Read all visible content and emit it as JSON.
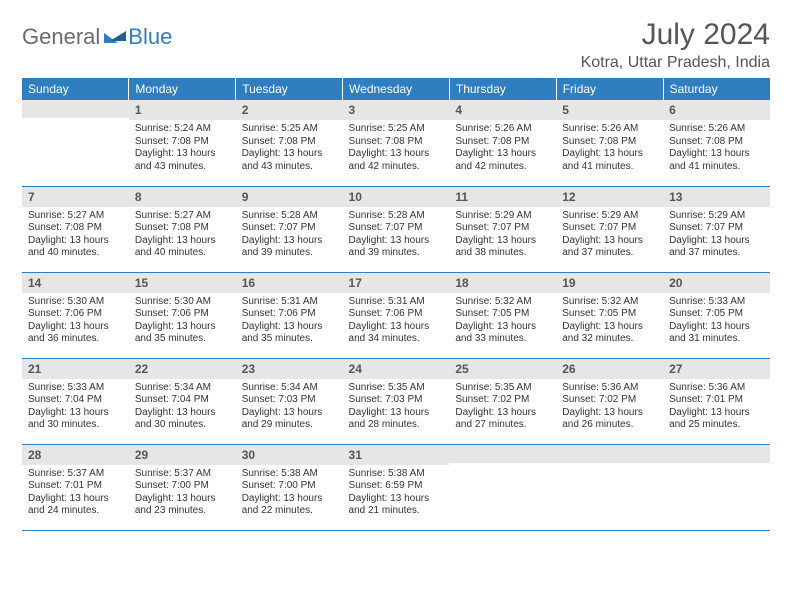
{
  "brand": {
    "part1": "General",
    "part2": "Blue"
  },
  "title": "July 2024",
  "location": "Kotra, Uttar Pradesh, India",
  "colors": {
    "accent": "#2f7ec0",
    "header_text": "#ffffff",
    "daynum_bg": "#e6e6e6",
    "text": "#333333",
    "muted": "#555555"
  },
  "columns": [
    "Sunday",
    "Monday",
    "Tuesday",
    "Wednesday",
    "Thursday",
    "Friday",
    "Saturday"
  ],
  "weeks": [
    [
      {
        "day": "",
        "sunrise": "",
        "sunset": "",
        "daylight": ""
      },
      {
        "day": "1",
        "sunrise": "Sunrise: 5:24 AM",
        "sunset": "Sunset: 7:08 PM",
        "daylight": "Daylight: 13 hours and 43 minutes."
      },
      {
        "day": "2",
        "sunrise": "Sunrise: 5:25 AM",
        "sunset": "Sunset: 7:08 PM",
        "daylight": "Daylight: 13 hours and 43 minutes."
      },
      {
        "day": "3",
        "sunrise": "Sunrise: 5:25 AM",
        "sunset": "Sunset: 7:08 PM",
        "daylight": "Daylight: 13 hours and 42 minutes."
      },
      {
        "day": "4",
        "sunrise": "Sunrise: 5:26 AM",
        "sunset": "Sunset: 7:08 PM",
        "daylight": "Daylight: 13 hours and 42 minutes."
      },
      {
        "day": "5",
        "sunrise": "Sunrise: 5:26 AM",
        "sunset": "Sunset: 7:08 PM",
        "daylight": "Daylight: 13 hours and 41 minutes."
      },
      {
        "day": "6",
        "sunrise": "Sunrise: 5:26 AM",
        "sunset": "Sunset: 7:08 PM",
        "daylight": "Daylight: 13 hours and 41 minutes."
      }
    ],
    [
      {
        "day": "7",
        "sunrise": "Sunrise: 5:27 AM",
        "sunset": "Sunset: 7:08 PM",
        "daylight": "Daylight: 13 hours and 40 minutes."
      },
      {
        "day": "8",
        "sunrise": "Sunrise: 5:27 AM",
        "sunset": "Sunset: 7:08 PM",
        "daylight": "Daylight: 13 hours and 40 minutes."
      },
      {
        "day": "9",
        "sunrise": "Sunrise: 5:28 AM",
        "sunset": "Sunset: 7:07 PM",
        "daylight": "Daylight: 13 hours and 39 minutes."
      },
      {
        "day": "10",
        "sunrise": "Sunrise: 5:28 AM",
        "sunset": "Sunset: 7:07 PM",
        "daylight": "Daylight: 13 hours and 39 minutes."
      },
      {
        "day": "11",
        "sunrise": "Sunrise: 5:29 AM",
        "sunset": "Sunset: 7:07 PM",
        "daylight": "Daylight: 13 hours and 38 minutes."
      },
      {
        "day": "12",
        "sunrise": "Sunrise: 5:29 AM",
        "sunset": "Sunset: 7:07 PM",
        "daylight": "Daylight: 13 hours and 37 minutes."
      },
      {
        "day": "13",
        "sunrise": "Sunrise: 5:29 AM",
        "sunset": "Sunset: 7:07 PM",
        "daylight": "Daylight: 13 hours and 37 minutes."
      }
    ],
    [
      {
        "day": "14",
        "sunrise": "Sunrise: 5:30 AM",
        "sunset": "Sunset: 7:06 PM",
        "daylight": "Daylight: 13 hours and 36 minutes."
      },
      {
        "day": "15",
        "sunrise": "Sunrise: 5:30 AM",
        "sunset": "Sunset: 7:06 PM",
        "daylight": "Daylight: 13 hours and 35 minutes."
      },
      {
        "day": "16",
        "sunrise": "Sunrise: 5:31 AM",
        "sunset": "Sunset: 7:06 PM",
        "daylight": "Daylight: 13 hours and 35 minutes."
      },
      {
        "day": "17",
        "sunrise": "Sunrise: 5:31 AM",
        "sunset": "Sunset: 7:06 PM",
        "daylight": "Daylight: 13 hours and 34 minutes."
      },
      {
        "day": "18",
        "sunrise": "Sunrise: 5:32 AM",
        "sunset": "Sunset: 7:05 PM",
        "daylight": "Daylight: 13 hours and 33 minutes."
      },
      {
        "day": "19",
        "sunrise": "Sunrise: 5:32 AM",
        "sunset": "Sunset: 7:05 PM",
        "daylight": "Daylight: 13 hours and 32 minutes."
      },
      {
        "day": "20",
        "sunrise": "Sunrise: 5:33 AM",
        "sunset": "Sunset: 7:05 PM",
        "daylight": "Daylight: 13 hours and 31 minutes."
      }
    ],
    [
      {
        "day": "21",
        "sunrise": "Sunrise: 5:33 AM",
        "sunset": "Sunset: 7:04 PM",
        "daylight": "Daylight: 13 hours and 30 minutes."
      },
      {
        "day": "22",
        "sunrise": "Sunrise: 5:34 AM",
        "sunset": "Sunset: 7:04 PM",
        "daylight": "Daylight: 13 hours and 30 minutes."
      },
      {
        "day": "23",
        "sunrise": "Sunrise: 5:34 AM",
        "sunset": "Sunset: 7:03 PM",
        "daylight": "Daylight: 13 hours and 29 minutes."
      },
      {
        "day": "24",
        "sunrise": "Sunrise: 5:35 AM",
        "sunset": "Sunset: 7:03 PM",
        "daylight": "Daylight: 13 hours and 28 minutes."
      },
      {
        "day": "25",
        "sunrise": "Sunrise: 5:35 AM",
        "sunset": "Sunset: 7:02 PM",
        "daylight": "Daylight: 13 hours and 27 minutes."
      },
      {
        "day": "26",
        "sunrise": "Sunrise: 5:36 AM",
        "sunset": "Sunset: 7:02 PM",
        "daylight": "Daylight: 13 hours and 26 minutes."
      },
      {
        "day": "27",
        "sunrise": "Sunrise: 5:36 AM",
        "sunset": "Sunset: 7:01 PM",
        "daylight": "Daylight: 13 hours and 25 minutes."
      }
    ],
    [
      {
        "day": "28",
        "sunrise": "Sunrise: 5:37 AM",
        "sunset": "Sunset: 7:01 PM",
        "daylight": "Daylight: 13 hours and 24 minutes."
      },
      {
        "day": "29",
        "sunrise": "Sunrise: 5:37 AM",
        "sunset": "Sunset: 7:00 PM",
        "daylight": "Daylight: 13 hours and 23 minutes."
      },
      {
        "day": "30",
        "sunrise": "Sunrise: 5:38 AM",
        "sunset": "Sunset: 7:00 PM",
        "daylight": "Daylight: 13 hours and 22 minutes."
      },
      {
        "day": "31",
        "sunrise": "Sunrise: 5:38 AM",
        "sunset": "Sunset: 6:59 PM",
        "daylight": "Daylight: 13 hours and 21 minutes."
      },
      {
        "day": "",
        "sunrise": "",
        "sunset": "",
        "daylight": ""
      },
      {
        "day": "",
        "sunrise": "",
        "sunset": "",
        "daylight": ""
      },
      {
        "day": "",
        "sunrise": "",
        "sunset": "",
        "daylight": ""
      }
    ]
  ]
}
